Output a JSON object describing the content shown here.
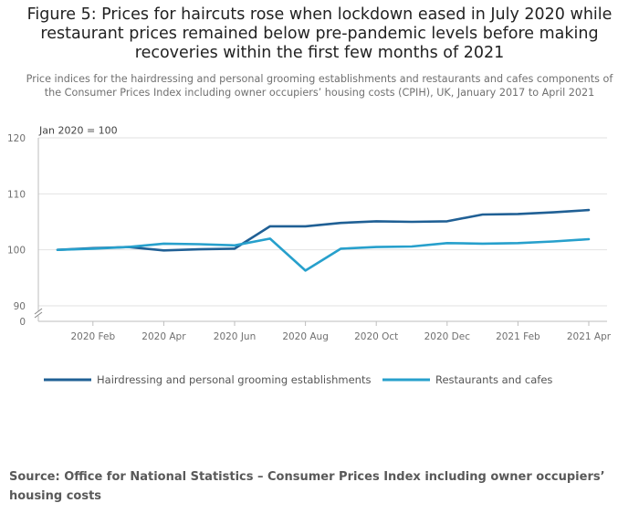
{
  "title": "Figure 5: Prices for haircuts rose when lockdown eased in July 2020 while restaurant prices remained below pre-pandemic levels before making recoveries within the first few months of 2021",
  "subtitle": "Price indices for the hairdressing and personal grooming establishments and restaurants and cafes components of the Consumer Prices Index including owner occupiers’ housing costs (CPIH), UK, January 2017 to April 2021",
  "source": "Source: Office for National Statistics – Consumer Prices Index including owner occupiers’ housing costs",
  "colors": {
    "hairdressing": "#206095",
    "restaurants": "#27a0cc",
    "axis": "#bebebe",
    "grid": "#e2e2e2",
    "text": "#707070"
  },
  "chart_data": {
    "type": "line",
    "unit_label": "Jan 2020 = 100",
    "x": [
      "2020 Jan",
      "2020 Feb",
      "2020 Mar",
      "2020 Apr",
      "2020 May",
      "2020 Jun",
      "2020 Jul",
      "2020 Aug",
      "2020 Sep",
      "2020 Oct",
      "2020 Nov",
      "2020 Dec",
      "2021 Jan",
      "2021 Feb",
      "2021 Mar",
      "2021 Apr"
    ],
    "x_tick_labels": [
      "2020 Feb",
      "2020 Apr",
      "2020 Jun",
      "2020 Aug",
      "2020 Oct",
      "2020 Dec",
      "2021 Feb",
      "2021 Apr"
    ],
    "y_ticks": [
      90,
      100,
      110,
      120
    ],
    "y_break_label": "0",
    "ylim": [
      90,
      120
    ],
    "legend_position": "bottom-left",
    "series": [
      {
        "name": "Hairdressing and personal grooming establishments",
        "color": "#206095",
        "values": [
          100.0,
          100.3,
          100.5,
          99.9,
          100.1,
          100.2,
          104.2,
          104.2,
          104.8,
          105.1,
          105.0,
          105.1,
          106.3,
          106.4,
          106.7,
          107.1
        ]
      },
      {
        "name": "Restaurants and cafes",
        "color": "#27a0cc",
        "values": [
          100.0,
          100.2,
          100.5,
          101.1,
          101.0,
          100.8,
          102.0,
          96.3,
          100.2,
          100.5,
          100.6,
          101.2,
          101.1,
          101.2,
          101.5,
          101.9
        ]
      }
    ]
  }
}
